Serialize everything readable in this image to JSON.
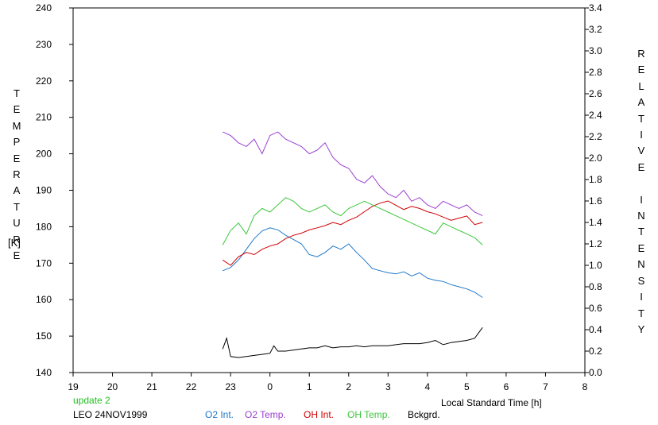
{
  "chart_data": {
    "type": "line",
    "left_axis": {
      "label": "TEMPERATURE",
      "unit": "[K]",
      "min": 140,
      "max": 240,
      "ticks": [
        "140",
        "150",
        "160",
        "170",
        "180",
        "190",
        "200",
        "210",
        "220",
        "230",
        "240"
      ]
    },
    "right_axis": {
      "label": "RELATIVE INTENSITY",
      "min": 0.0,
      "max": 3.4,
      "ticks": [
        "0.0",
        "0.2",
        "0.4",
        "0.6",
        "0.8",
        "1.0",
        "1.2",
        "1.4",
        "1.6",
        "1.8",
        "2.0",
        "2.2",
        "2.4",
        "2.6",
        "2.8",
        "3.0",
        "3.2",
        "3.4"
      ]
    },
    "x_axis": {
      "label": "Local Standard Time [h]",
      "min": 19,
      "max": 32,
      "ticks": [
        "19",
        "20",
        "21",
        "22",
        "23",
        "0",
        "1",
        "2",
        "3",
        "4",
        "5",
        "6",
        "7",
        "8"
      ]
    },
    "note": "update 2",
    "footer": "LEO 24NOV1999",
    "series": [
      {
        "name": "O2 Int.",
        "color": "#1f78c8",
        "axis": "right",
        "x": [
          22.8,
          23.0,
          23.2,
          23.4,
          23.6,
          23.8,
          24.0,
          24.2,
          24.4,
          24.6,
          24.8,
          25.0,
          25.2,
          25.4,
          25.6,
          25.8,
          26.0,
          26.2,
          26.4,
          26.6,
          26.8,
          27.0,
          27.2,
          27.4,
          27.6,
          27.8,
          28.0,
          28.2,
          28.4,
          28.6,
          28.8,
          29.0,
          29.2,
          29.4
        ],
        "values": [
          0.95,
          0.98,
          1.05,
          1.15,
          1.25,
          1.32,
          1.35,
          1.33,
          1.28,
          1.24,
          1.2,
          1.1,
          1.08,
          1.12,
          1.18,
          1.15,
          1.2,
          1.12,
          1.05,
          0.97,
          0.95,
          0.93,
          0.92,
          0.94,
          0.9,
          0.93,
          0.88,
          0.86,
          0.85,
          0.82,
          0.8,
          0.78,
          0.75,
          0.7
        ]
      },
      {
        "name": "O2 Temp.",
        "color": "#9a3fd0",
        "axis": "left",
        "x": [
          22.8,
          23.0,
          23.2,
          23.4,
          23.6,
          23.8,
          24.0,
          24.2,
          24.4,
          24.6,
          24.8,
          25.0,
          25.2,
          25.4,
          25.6,
          25.8,
          26.0,
          26.2,
          26.4,
          26.6,
          26.8,
          27.0,
          27.2,
          27.4,
          27.6,
          27.8,
          28.0,
          28.2,
          28.4,
          28.6,
          28.8,
          29.0,
          29.2,
          29.4
        ],
        "values": [
          206,
          205,
          203,
          202,
          204,
          200,
          205,
          206,
          204,
          203,
          202,
          200,
          201,
          203,
          199,
          197,
          196,
          193,
          192,
          194,
          191,
          189,
          188,
          190,
          187,
          188,
          186,
          185,
          187,
          186,
          185,
          186,
          184,
          183
        ]
      },
      {
        "name": "OH Int.",
        "color": "#d00000",
        "axis": "right",
        "x": [
          22.8,
          23.0,
          23.2,
          23.4,
          23.6,
          23.8,
          24.0,
          24.2,
          24.4,
          24.6,
          24.8,
          25.0,
          25.2,
          25.4,
          25.6,
          25.8,
          26.0,
          26.2,
          26.4,
          26.6,
          26.8,
          27.0,
          27.2,
          27.4,
          27.6,
          27.8,
          28.0,
          28.2,
          28.4,
          28.6,
          28.8,
          29.0,
          29.2,
          29.4
        ],
        "values": [
          1.05,
          1.0,
          1.08,
          1.12,
          1.1,
          1.15,
          1.18,
          1.2,
          1.25,
          1.28,
          1.3,
          1.33,
          1.35,
          1.37,
          1.4,
          1.38,
          1.42,
          1.45,
          1.5,
          1.55,
          1.58,
          1.6,
          1.56,
          1.52,
          1.55,
          1.53,
          1.5,
          1.48,
          1.45,
          1.42,
          1.44,
          1.46,
          1.38,
          1.4
        ]
      },
      {
        "name": "OH Temp.",
        "color": "#3ec63e",
        "axis": "left",
        "x": [
          22.8,
          23.0,
          23.2,
          23.4,
          23.6,
          23.8,
          24.0,
          24.2,
          24.4,
          24.6,
          24.8,
          25.0,
          25.2,
          25.4,
          25.6,
          25.8,
          26.0,
          26.2,
          26.4,
          26.6,
          26.8,
          27.0,
          27.2,
          27.4,
          27.6,
          27.8,
          28.0,
          28.2,
          28.4,
          28.6,
          28.8,
          29.0,
          29.2,
          29.4
        ],
        "values": [
          175,
          179,
          181,
          178,
          183,
          185,
          184,
          186,
          188,
          187,
          185,
          184,
          185,
          186,
          184,
          183,
          185,
          186,
          187,
          186,
          185,
          184,
          183,
          182,
          181,
          180,
          179,
          178,
          181,
          180,
          179,
          178,
          177,
          175
        ]
      },
      {
        "name": "Bckgrd.",
        "color": "#000000",
        "axis": "right",
        "x": [
          22.8,
          22.9,
          23.0,
          23.2,
          23.4,
          23.6,
          23.8,
          24.0,
          24.1,
          24.2,
          24.4,
          24.6,
          24.8,
          25.0,
          25.2,
          25.4,
          25.6,
          25.8,
          26.0,
          26.2,
          26.4,
          26.6,
          26.8,
          27.0,
          27.2,
          27.4,
          27.6,
          27.8,
          28.0,
          28.2,
          28.4,
          28.6,
          28.8,
          29.0,
          29.2,
          29.4
        ],
        "values": [
          0.22,
          0.32,
          0.15,
          0.14,
          0.15,
          0.16,
          0.17,
          0.18,
          0.25,
          0.2,
          0.2,
          0.21,
          0.22,
          0.23,
          0.23,
          0.25,
          0.23,
          0.24,
          0.24,
          0.25,
          0.24,
          0.25,
          0.25,
          0.25,
          0.26,
          0.27,
          0.27,
          0.27,
          0.28,
          0.3,
          0.26,
          0.28,
          0.29,
          0.3,
          0.32,
          0.42
        ]
      }
    ],
    "legend": [
      "O2 Int.",
      "O2 Temp.",
      "OH Int.",
      "OH Temp.",
      "Bckgrd."
    ],
    "grid": false
  }
}
